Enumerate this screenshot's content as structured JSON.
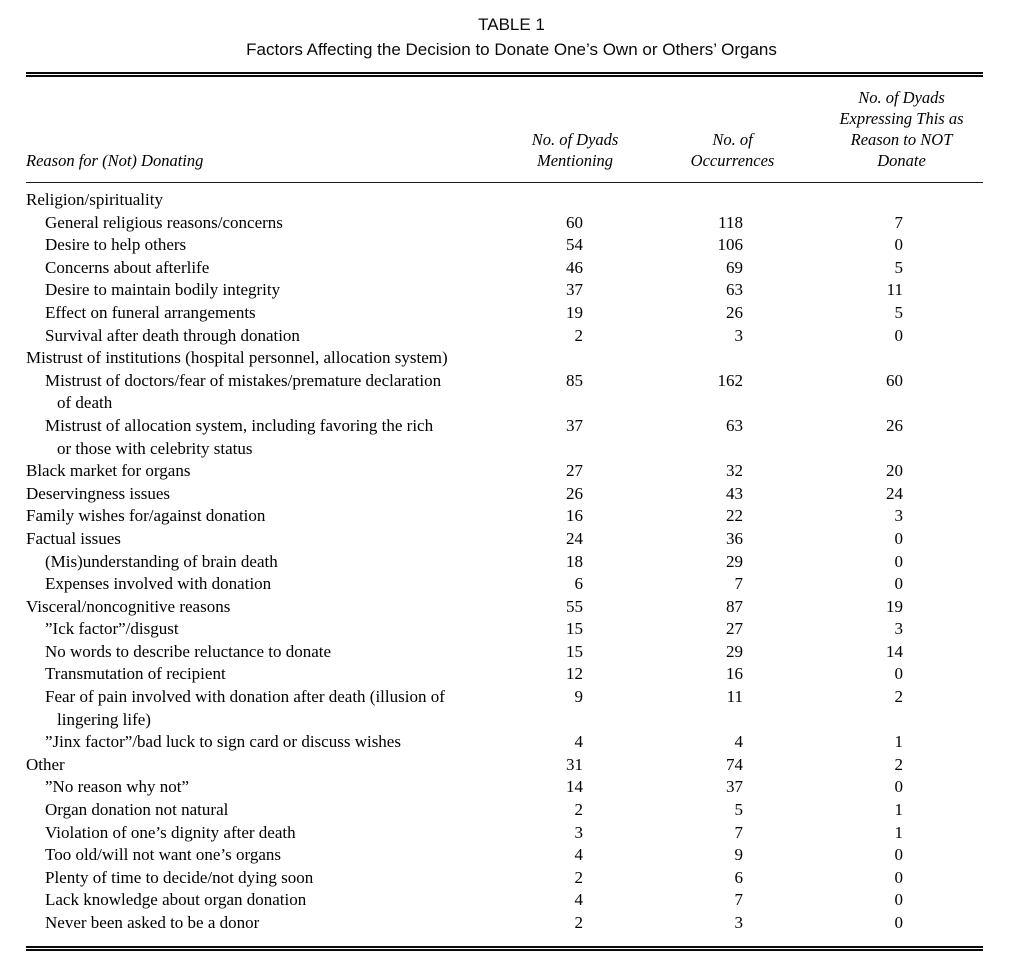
{
  "caption": {
    "label": "TABLE 1",
    "title": "Factors Affecting the Decision to Donate One’s Own or Others’ Organs"
  },
  "table": {
    "headers": {
      "reason": "Reason for (Not) Donating",
      "dyads": "No. of Dyads\nMentioning",
      "occurrences": "No. of\nOccurrences",
      "not_donate": "No. of Dyads\nExpressing This as\nReason to NOT\nDonate"
    },
    "rows": [
      {
        "label": "Religion/spirituality",
        "indent": 0,
        "dyads": "",
        "occurrences": "",
        "not_donate": ""
      },
      {
        "label": "General religious reasons/concerns",
        "indent": 1,
        "dyads": "60",
        "occurrences": "118",
        "not_donate": "7"
      },
      {
        "label": "Desire to help others",
        "indent": 1,
        "dyads": "54",
        "occurrences": "106",
        "not_donate": "0"
      },
      {
        "label": "Concerns about afterlife",
        "indent": 1,
        "dyads": "46",
        "occurrences": "69",
        "not_donate": "5"
      },
      {
        "label": "Desire to maintain bodily integrity",
        "indent": 1,
        "dyads": "37",
        "occurrences": "63",
        "not_donate": "11"
      },
      {
        "label": "Effect on funeral arrangements",
        "indent": 1,
        "dyads": "19",
        "occurrences": "26",
        "not_donate": "5"
      },
      {
        "label": "Survival after death through donation",
        "indent": 1,
        "dyads": "2",
        "occurrences": "3",
        "not_donate": "0"
      },
      {
        "label": "Mistrust of institutions (hospital personnel, allocation system)",
        "indent": 0,
        "dyads": "",
        "occurrences": "",
        "not_donate": ""
      },
      {
        "label": "Mistrust of doctors/fear of mistakes/premature declaration",
        "label2": "of death",
        "indent": 1,
        "dyads": "85",
        "occurrences": "162",
        "not_donate": "60"
      },
      {
        "label": "Mistrust of allocation system, including favoring the rich",
        "label2": "or those with celebrity status",
        "indent": 1,
        "dyads": "37",
        "occurrences": "63",
        "not_donate": "26"
      },
      {
        "label": "Black market for organs",
        "indent": 0,
        "dyads": "27",
        "occurrences": "32",
        "not_donate": "20"
      },
      {
        "label": "Deservingness issues",
        "indent": 0,
        "dyads": "26",
        "occurrences": "43",
        "not_donate": "24"
      },
      {
        "label": "Family wishes for/against donation",
        "indent": 0,
        "dyads": "16",
        "occurrences": "22",
        "not_donate": "3"
      },
      {
        "label": "Factual issues",
        "indent": 0,
        "dyads": "24",
        "occurrences": "36",
        "not_donate": "0"
      },
      {
        "label": "(Mis)understanding of brain death",
        "indent": 1,
        "dyads": "18",
        "occurrences": "29",
        "not_donate": "0"
      },
      {
        "label": "Expenses involved with donation",
        "indent": 1,
        "dyads": "6",
        "occurrences": "7",
        "not_donate": "0"
      },
      {
        "label": "Visceral/noncognitive reasons",
        "indent": 0,
        "dyads": "55",
        "occurrences": "87",
        "not_donate": "19"
      },
      {
        "label": "”Ick factor”/disgust",
        "indent": 1,
        "dyads": "15",
        "occurrences": "27",
        "not_donate": "3"
      },
      {
        "label": "No words to describe reluctance to donate",
        "indent": 1,
        "dyads": "15",
        "occurrences": "29",
        "not_donate": "14"
      },
      {
        "label": "Transmutation of recipient",
        "indent": 1,
        "dyads": "12",
        "occurrences": "16",
        "not_donate": "0"
      },
      {
        "label": "Fear of pain involved with donation after death (illusion of",
        "label2": "lingering life)",
        "indent": 1,
        "dyads": "9",
        "occurrences": "11",
        "not_donate": "2"
      },
      {
        "label": "”Jinx factor”/bad luck to sign card or discuss wishes",
        "indent": 1,
        "dyads": "4",
        "occurrences": "4",
        "not_donate": "1"
      },
      {
        "label": "Other",
        "indent": 0,
        "dyads": "31",
        "occurrences": "74",
        "not_donate": "2"
      },
      {
        "label": "”No reason why not”",
        "indent": 1,
        "dyads": "14",
        "occurrences": "37",
        "not_donate": "0"
      },
      {
        "label": "Organ donation not natural",
        "indent": 1,
        "dyads": "2",
        "occurrences": "5",
        "not_donate": "1"
      },
      {
        "label": "Violation of one’s dignity after death",
        "indent": 1,
        "dyads": "3",
        "occurrences": "7",
        "not_donate": "1"
      },
      {
        "label": "Too old/will not want one’s organs",
        "indent": 1,
        "dyads": "4",
        "occurrences": "9",
        "not_donate": "0"
      },
      {
        "label": "Plenty of time to decide/not dying soon",
        "indent": 1,
        "dyads": "2",
        "occurrences": "6",
        "not_donate": "0"
      },
      {
        "label": "Lack knowledge about organ donation",
        "indent": 1,
        "dyads": "4",
        "occurrences": "7",
        "not_donate": "0"
      },
      {
        "label": "Never been asked to be a donor",
        "indent": 1,
        "dyads": "2",
        "occurrences": "3",
        "not_donate": "0"
      }
    ]
  }
}
